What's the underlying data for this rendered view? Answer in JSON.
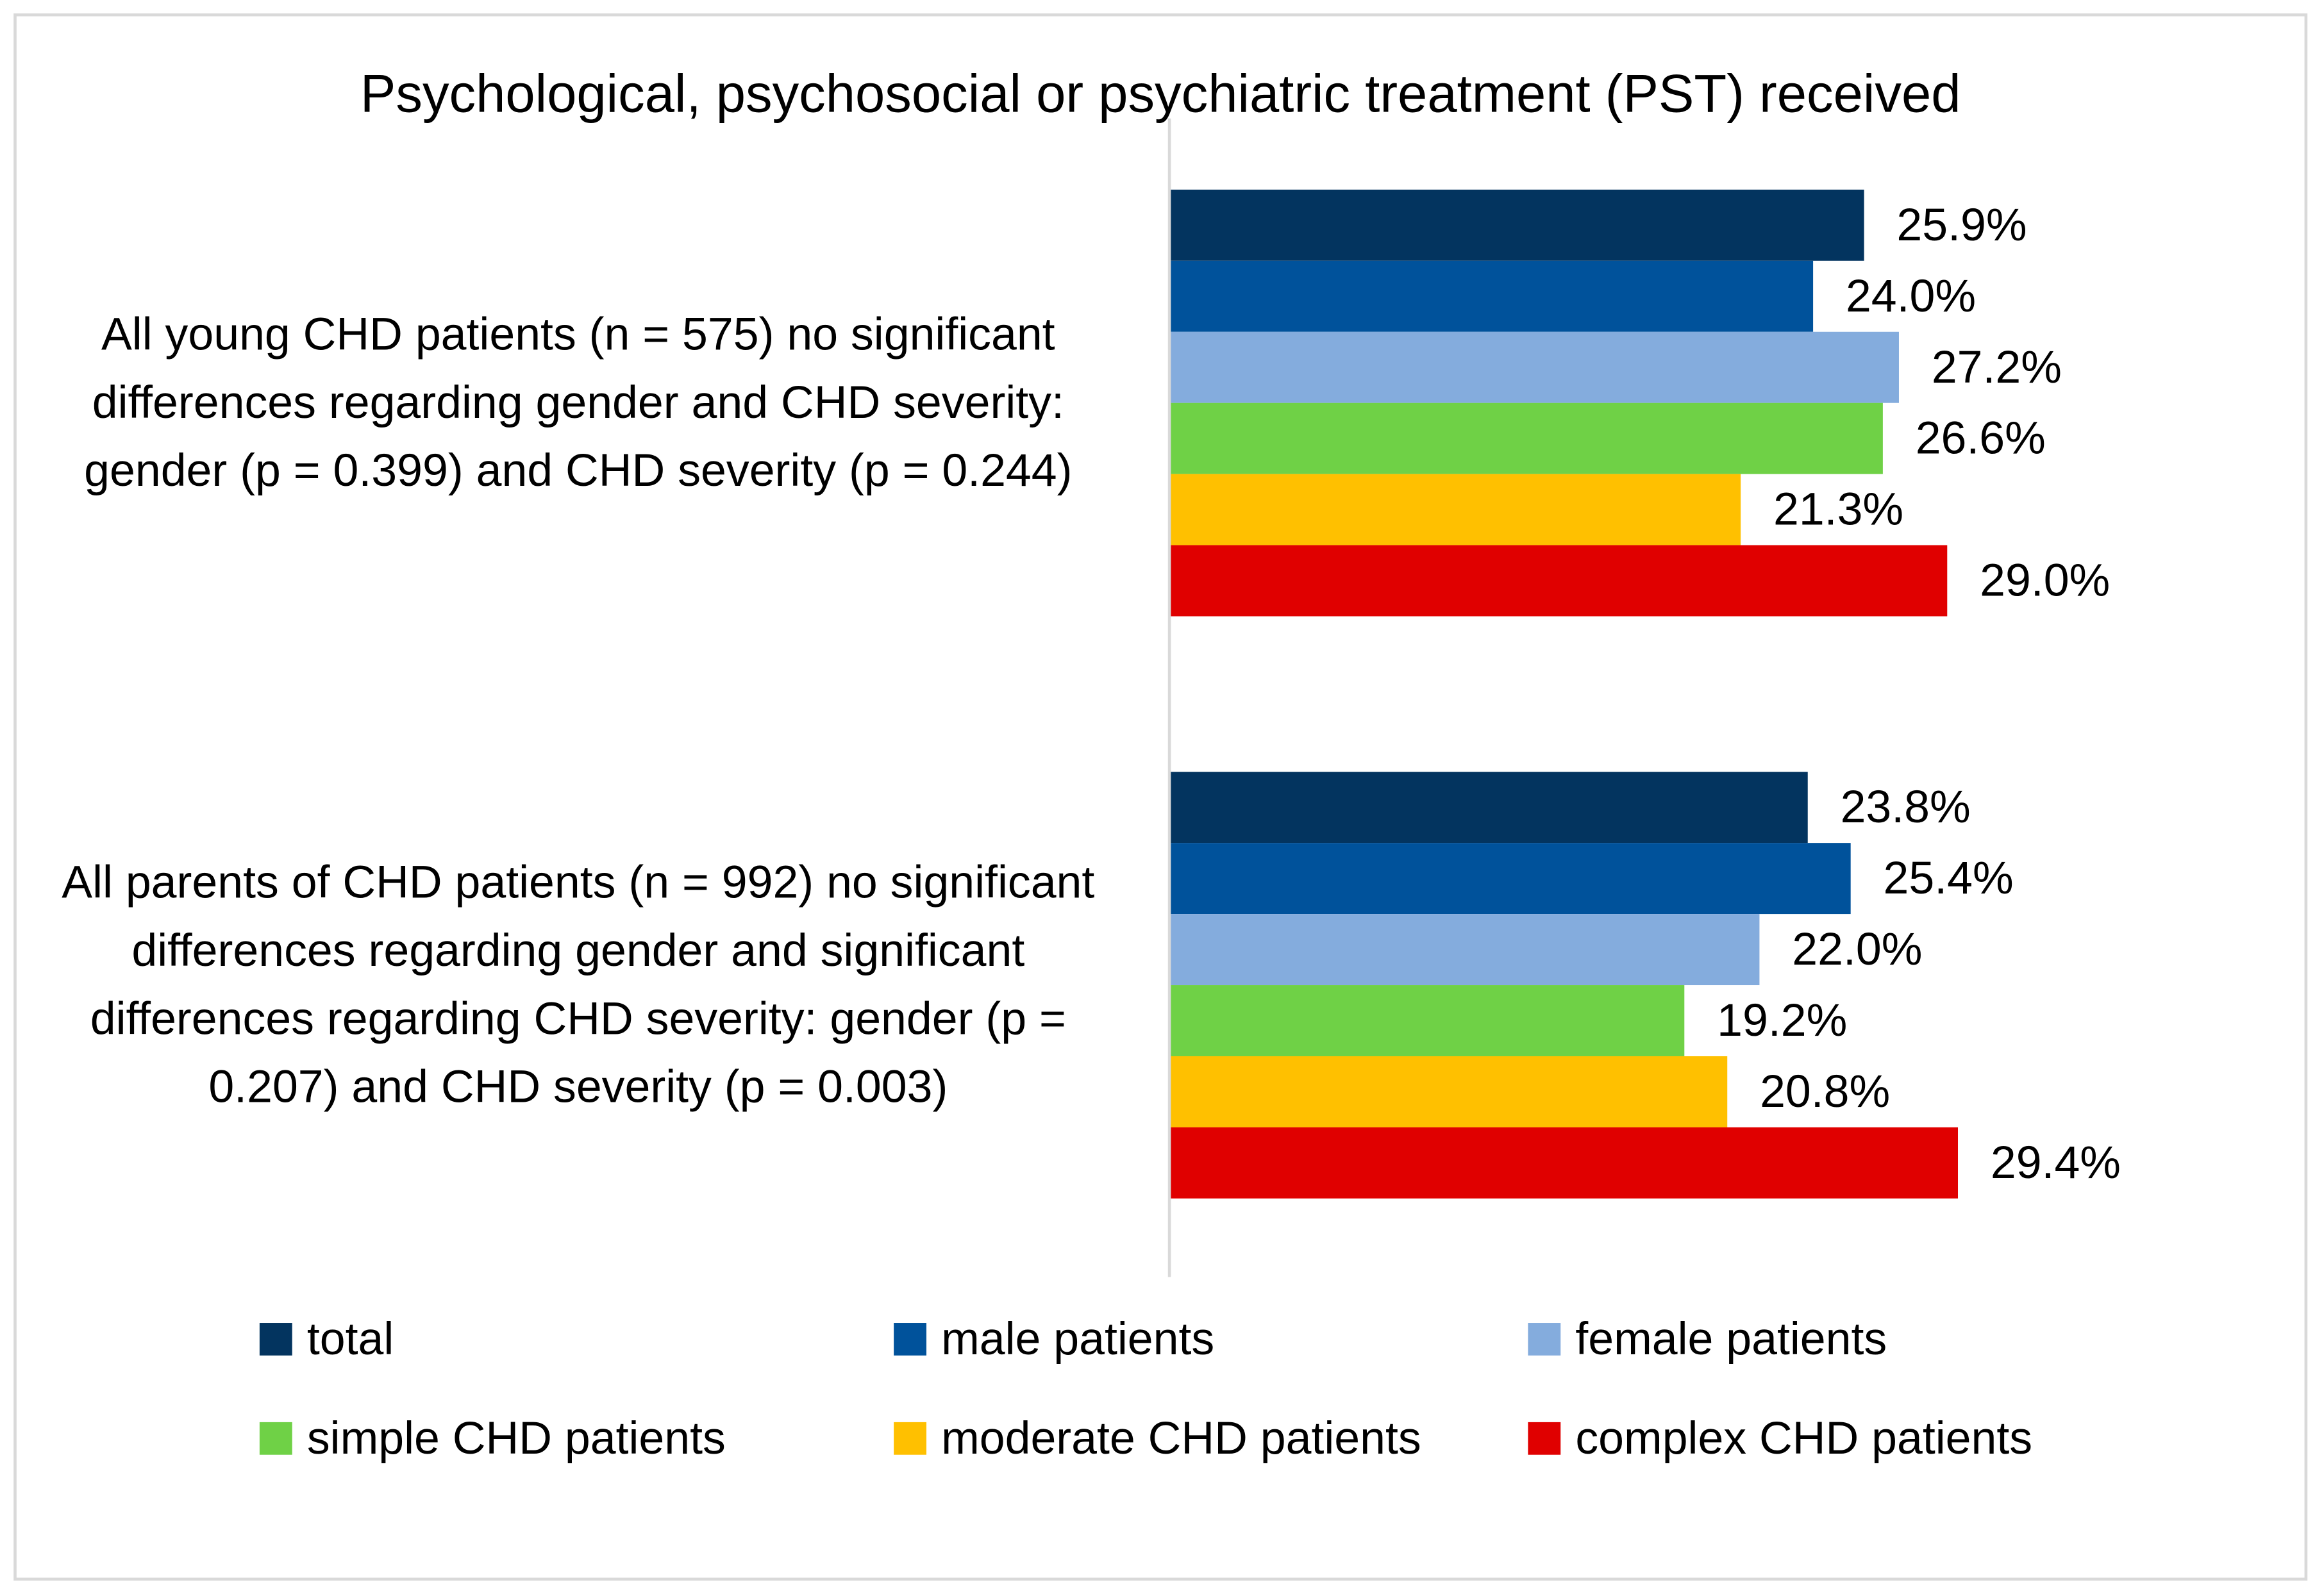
{
  "chart_data": {
    "type": "bar",
    "orientation": "horizontal",
    "title": "Psychological, psychosocial or psychiatric treatment (PST) received",
    "categories": [
      "All young CHD patients (n = 575) no significant differences regarding gender and CHD severity:  gender (p = 0.399)  and CHD severity (p = 0.244)",
      "All parents of CHD patients (n = 992) no significant differences regarding gender and significant differences regarding CHD severity: gender (p = 0.207)  and CHD severity (p = 0.003)"
    ],
    "series": [
      {
        "name": "total",
        "color": "#03345f",
        "values": [
          25.9,
          23.8
        ],
        "value_labels": [
          "25.9%",
          "23.8%"
        ]
      },
      {
        "name": "male patients",
        "color": "#00529b",
        "values": [
          24.0,
          25.4
        ],
        "value_labels": [
          "24.0%",
          "25.4%"
        ]
      },
      {
        "name": "female patients",
        "color": "#84acdd",
        "values": [
          27.2,
          22.0
        ],
        "value_labels": [
          "27.2%",
          "22.0%"
        ]
      },
      {
        "name": "simple CHD patients",
        "color": "#6fd146",
        "values": [
          26.6,
          19.2
        ],
        "value_labels": [
          "26.6%",
          "19.2%"
        ]
      },
      {
        "name": "moderate CHD patients",
        "color": "#ffc000",
        "values": [
          21.3,
          20.8
        ],
        "value_labels": [
          "21.3%",
          "20.8%"
        ]
      },
      {
        "name": "complex CHD patients",
        "color": "#e00000",
        "values": [
          29.0,
          29.4
        ],
        "value_labels": [
          "29.0%",
          "29.4%"
        ]
      }
    ],
    "xlim": [
      0,
      38
    ]
  }
}
